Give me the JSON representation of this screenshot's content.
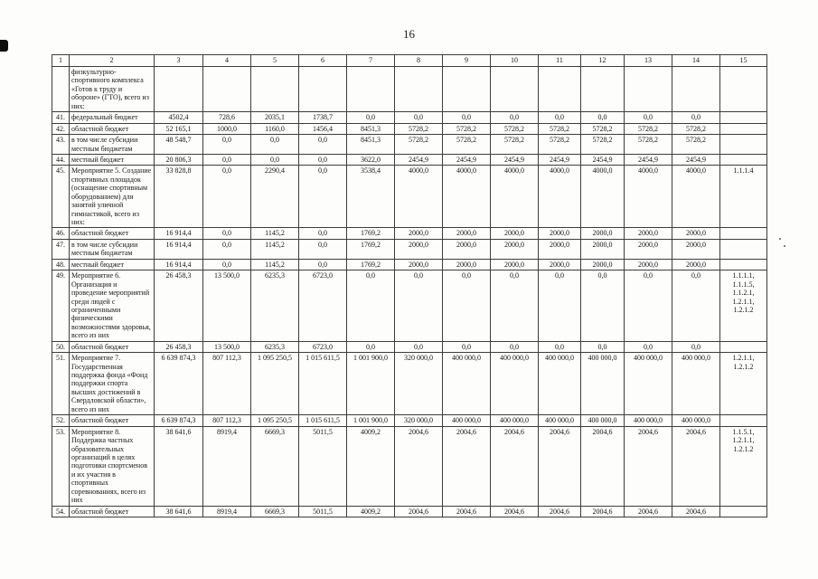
{
  "page": {
    "number": "16"
  },
  "table": {
    "col_headers": [
      "1",
      "2",
      "3",
      "4",
      "5",
      "6",
      "7",
      "8",
      "9",
      "10",
      "11",
      "12",
      "13",
      "14",
      "15"
    ],
    "rows": [
      {
        "num": "",
        "name": "физкультурно-спортивного комплекса «Готов к труду и обороне» (ГТО), всего из них:",
        "values": [
          "",
          "",
          "",
          "",
          "",
          "",
          "",
          "",
          "",
          "",
          "",
          ""
        ],
        "code": ""
      },
      {
        "num": "41.",
        "name": "федеральный бюджет",
        "values": [
          "4502,4",
          "728,6",
          "2035,1",
          "1738,7",
          "0,0",
          "0,0",
          "0,0",
          "0,0",
          "0,0",
          "0,0",
          "0,0",
          "0,0"
        ],
        "code": ""
      },
      {
        "num": "42.",
        "name": "областной бюджет",
        "values": [
          "52 165,1",
          "1000,0",
          "1160,0",
          "1456,4",
          "8451,3",
          "5728,2",
          "5728,2",
          "5728,2",
          "5728,2",
          "5728,2",
          "5728,2",
          "5728,2"
        ],
        "code": ""
      },
      {
        "num": "43.",
        "name": "в том числе субсидии местным бюджетам",
        "values": [
          "48 548,7",
          "0,0",
          "0,0",
          "0,0",
          "8451,3",
          "5728,2",
          "5728,2",
          "5728,2",
          "5728,2",
          "5728,2",
          "5728,2",
          "5728,2"
        ],
        "code": ""
      },
      {
        "num": "44.",
        "name": "местный бюджет",
        "values": [
          "20 806,3",
          "0,0",
          "0,0",
          "0,0",
          "3622,0",
          "2454,9",
          "2454,9",
          "2454,9",
          "2454,9",
          "2454,9",
          "2454,9",
          "2454,9"
        ],
        "code": ""
      },
      {
        "num": "45.",
        "name": "Мероприятие 5. Создание спортивных площадок (оснащение спортивным оборудованием) для занятий уличной гимнастикой, всего из них:",
        "values": [
          "33 828,8",
          "0,0",
          "2290,4",
          "0,0",
          "3538,4",
          "4000,0",
          "4000,0",
          "4000,0",
          "4000,0",
          "4000,0",
          "4000,0",
          "4000,0"
        ],
        "code": "1.1.1.4"
      },
      {
        "num": "46.",
        "name": "областной бюджет",
        "values": [
          "16 914,4",
          "0,0",
          "1145,2",
          "0,0",
          "1769,2",
          "2000,0",
          "2000,0",
          "2000,0",
          "2000,0",
          "2000,0",
          "2000,0",
          "2000,0"
        ],
        "code": ""
      },
      {
        "num": "47.",
        "name": "в том числе субсидии местным бюджетам",
        "values": [
          "16 914,4",
          "0,0",
          "1145,2",
          "0,0",
          "1769,2",
          "2000,0",
          "2000,0",
          "2000,0",
          "2000,0",
          "2000,0",
          "2000,0",
          "2000,0"
        ],
        "code": ""
      },
      {
        "num": "48.",
        "name": "местный бюджет",
        "values": [
          "16 914,4",
          "0,0",
          "1145,2",
          "0,0",
          "1769,2",
          "2000,0",
          "2000,0",
          "2000,0",
          "2000,0",
          "2000,0",
          "2000,0",
          "2000,0"
        ],
        "code": ""
      },
      {
        "num": "49.",
        "name": "Мероприятие 6. Организация и проведение мероприятий среди людей с ограниченными физическими возможностями здоровья, всего из них",
        "values": [
          "26 458,3",
          "13 500,0",
          "6235,3",
          "6723,0",
          "0,0",
          "0,0",
          "0,0",
          "0,0",
          "0,0",
          "0,0",
          "0,0",
          "0,0"
        ],
        "code": "1.1.1.1, 1.1.1.5, 1.1.2.1, 1.2.1.1, 1.2.1.2"
      },
      {
        "num": "50.",
        "name": "областной бюджет",
        "values": [
          "26 458,3",
          "13 500,0",
          "6235,3",
          "6723,0",
          "0,0",
          "0,0",
          "0,0",
          "0,0",
          "0,0",
          "0,0",
          "0,0",
          "0,0"
        ],
        "code": ""
      },
      {
        "num": "51.",
        "name": "Мероприятие 7. Государственная поддержка фонда «Фонд поддержки спорта высших достижений в Свердловской области», всего из них",
        "values": [
          "6 639 874,3",
          "807 112,3",
          "1 095 250,5",
          "1 015 611,5",
          "1 001 900,0",
          "320 000,0",
          "400 000,0",
          "400 000,0",
          "400 000,0",
          "400 000,0",
          "400 000,0",
          "400 000,0"
        ],
        "code": "1.2.1.1, 1.2.1.2"
      },
      {
        "num": "52.",
        "name": "областной бюджет",
        "values": [
          "6 639 874,3",
          "807 112,3",
          "1 095 250,5",
          "1 015 611,5",
          "1 001 900,0",
          "320 000,0",
          "400 000,0",
          "400 000,0",
          "400 000,0",
          "400 000,0",
          "400 000,0",
          "400 000,0"
        ],
        "code": ""
      },
      {
        "num": "53.",
        "name": "Мероприятие 8. Поддержка частных образовательных организаций в целях подготовки спортсменов и их участия в спортивных соревнованиях, всего из них",
        "values": [
          "38 641,6",
          "8919,4",
          "6669,3",
          "5011,5",
          "4009,2",
          "2004,6",
          "2004,6",
          "2004,6",
          "2004,6",
          "2004,6",
          "2004,6",
          "2004,6"
        ],
        "code": "1.1.5.1, 1.2.1.1, 1.2.1.2"
      },
      {
        "num": "54.",
        "name": "областной бюджет",
        "values": [
          "38 641,6",
          "8919,4",
          "6669,3",
          "5011,5",
          "4009,2",
          "2004,6",
          "2004,6",
          "2004,6",
          "2004,6",
          "2004,6",
          "2004,6",
          "2004,6"
        ],
        "code": ""
      }
    ]
  }
}
